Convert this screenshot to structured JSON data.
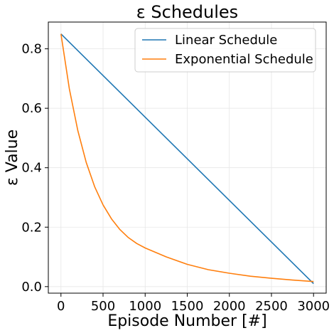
{
  "chart_data": {
    "type": "line",
    "title": "ε Schedules",
    "xlabel": "Episode Number [#]",
    "ylabel": "ε Value",
    "xlim": [
      -150,
      3150
    ],
    "ylim": [
      -0.022,
      0.89
    ],
    "xticks": [
      0,
      500,
      1000,
      1500,
      2000,
      2500,
      3000
    ],
    "yticks": [
      0.0,
      0.2,
      0.4,
      0.6,
      0.8
    ],
    "grid": true,
    "legend_position": "top-right",
    "series": [
      {
        "name": "Linear Schedule",
        "color": "#1f77b4",
        "x": [
          0,
          3000
        ],
        "y": [
          0.85,
          0.01
        ]
      },
      {
        "name": "Exponential Schedule",
        "color": "#ff7f0e",
        "x": [
          0,
          100,
          200,
          300,
          400,
          500,
          600,
          700,
          800,
          900,
          1000,
          1250,
          1500,
          1750,
          2000,
          2250,
          2500,
          2750,
          3000
        ],
        "y": [
          0.85,
          0.665,
          0.525,
          0.418,
          0.336,
          0.275,
          0.228,
          0.192,
          0.165,
          0.145,
          0.13,
          0.1,
          0.075,
          0.057,
          0.045,
          0.035,
          0.028,
          0.022,
          0.017
        ]
      }
    ]
  }
}
